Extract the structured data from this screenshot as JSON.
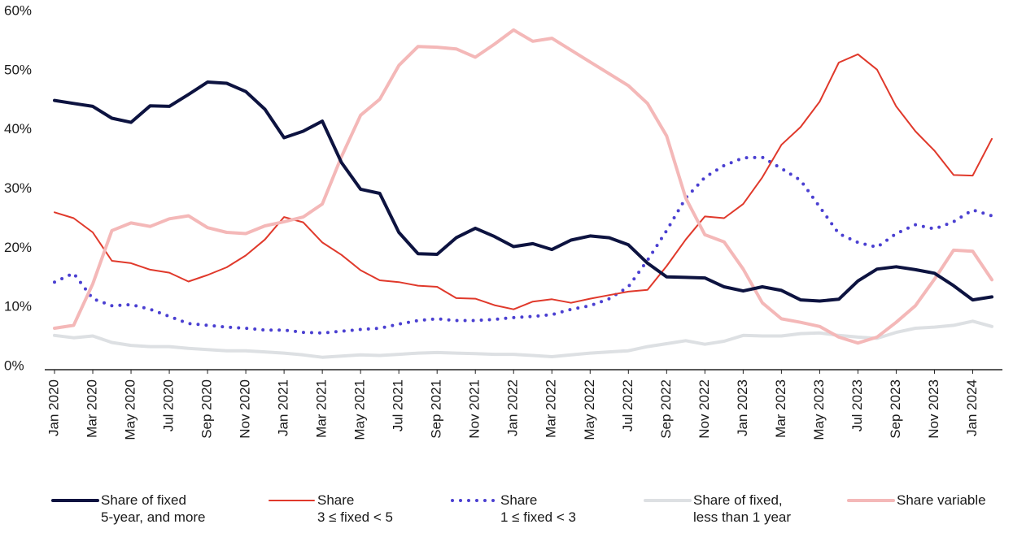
{
  "chart_data": {
    "type": "line",
    "categories": [
      "Jan 2020",
      null,
      "Mar 2020",
      null,
      "May 2020",
      null,
      "Jul 2020",
      null,
      "Sep 2020",
      null,
      "Nov 2020",
      null,
      "Jan 2021",
      null,
      "Mar 2021",
      null,
      "May 2021",
      null,
      "Jul 2021",
      null,
      "Sep 2021",
      null,
      "Nov 2021",
      null,
      "Jan 2022",
      null,
      "Mar 2022",
      null,
      "May 2022",
      null,
      "Jul 2022",
      null,
      "Sep 2022",
      null,
      "Nov 2022",
      null,
      "Jan 2023",
      null,
      "Mar 2023",
      null,
      "May 2023",
      null,
      "Jul 2023",
      null,
      "Sep 2023",
      null,
      "Nov 2023",
      null,
      "Jan 2024",
      null
    ],
    "ylim": [
      0,
      60
    ],
    "yticks": [
      {
        "value": 0,
        "label": "0%"
      },
      {
        "value": 10,
        "label": "10%"
      },
      {
        "value": 20,
        "label": "20%"
      },
      {
        "value": 30,
        "label": "30%"
      },
      {
        "value": 40,
        "label": "40%"
      },
      {
        "value": 50,
        "label": "50%"
      },
      {
        "value": 60,
        "label": "60%"
      }
    ],
    "legend": "bottom",
    "series": [
      {
        "name": "Share of fixed\n5-year, and more",
        "color": "#0d1340",
        "style": "solid",
        "width": 4,
        "values": [
          45.5,
          45,
          44.5,
          42.5,
          41.8,
          44.6,
          44.5,
          46.5,
          48.6,
          48.4,
          47,
          44,
          39.2,
          40.3,
          42,
          35,
          30.5,
          29.8,
          23.2,
          19.6,
          19.5,
          22.3,
          23.9,
          22.5,
          20.8,
          21.3,
          20.3,
          21.9,
          22.6,
          22.3,
          21.1,
          18,
          15.7,
          15.6,
          15.5,
          14,
          13.3,
          14,
          13.4,
          11.8,
          11.6,
          11.9,
          15,
          17,
          17.4,
          16.9,
          16.3,
          14.2,
          11.8,
          12.3
        ]
      },
      {
        "name": "Share\n3 ≤ fixed < 5",
        "color": "#e0392b",
        "style": "solid",
        "width": 2,
        "values": [
          26.6,
          25.6,
          23.2,
          18.4,
          18,
          16.9,
          16.4,
          14.9,
          16,
          17.3,
          19.3,
          22,
          25.8,
          24.9,
          21.5,
          19.4,
          16.8,
          15.1,
          14.8,
          14.2,
          14,
          12.1,
          12,
          10.9,
          10.2,
          11.5,
          11.9,
          11.3,
          12,
          12.6,
          13.2,
          13.5,
          17.5,
          22,
          25.9,
          25.6,
          28,
          32.5,
          38,
          41,
          45.3,
          51.9,
          53.3,
          50.7,
          44.5,
          40.3,
          37,
          32.9,
          32.8,
          39
        ]
      },
      {
        "name": "Share\n1 ≤ fixed < 3",
        "color": "#4a3fd1",
        "style": "dotted",
        "width": 4,
        "values": [
          14.8,
          16.3,
          12,
          10.8,
          11,
          10.2,
          9,
          7.8,
          7.5,
          7.2,
          7,
          6.7,
          6.7,
          6.3,
          6.2,
          6.5,
          6.8,
          7,
          7.7,
          8.3,
          8.6,
          8.3,
          8.3,
          8.5,
          8.8,
          9,
          9.3,
          10.2,
          10.8,
          12,
          14,
          18.5,
          23.5,
          29,
          32.5,
          34.5,
          35.8,
          35.9,
          34,
          32,
          27.5,
          23,
          21.5,
          20.7,
          23,
          24.5,
          23.8,
          25,
          27,
          26
        ]
      },
      {
        "name": "Share of fixed,\nless than 1 year",
        "color": "#dde0e3",
        "style": "solid",
        "width": 4,
        "values": [
          5.8,
          5.4,
          5.7,
          4.6,
          4.1,
          3.9,
          3.9,
          3.6,
          3.4,
          3.2,
          3.2,
          3,
          2.8,
          2.5,
          2.1,
          2.3,
          2.5,
          2.4,
          2.6,
          2.8,
          2.9,
          2.8,
          2.7,
          2.6,
          2.6,
          2.4,
          2.2,
          2.5,
          2.8,
          3,
          3.2,
          3.9,
          4.4,
          4.9,
          4.3,
          4.8,
          5.8,
          5.7,
          5.7,
          6.1,
          6.2,
          5.8,
          5.5,
          5.3,
          6.3,
          7,
          7.2,
          7.5,
          8.2,
          7.3
        ]
      },
      {
        "name": "Share variable",
        "color": "#f4b8b8",
        "style": "solid",
        "width": 4,
        "values": [
          7,
          7.5,
          14.5,
          23.5,
          24.8,
          24.2,
          25.5,
          26,
          24,
          23.2,
          23,
          24.3,
          25,
          25.8,
          28,
          36,
          43,
          45.7,
          51.4,
          54.6,
          54.5,
          54.2,
          52.8,
          55,
          57.4,
          55.5,
          56,
          54,
          52,
          50,
          48,
          45,
          39.5,
          29,
          22.8,
          21.6,
          17,
          11.3,
          8.6,
          8,
          7.3,
          5.5,
          4.5,
          5.5,
          8,
          10.8,
          15.3,
          20.2,
          20,
          15.2
        ]
      }
    ]
  }
}
